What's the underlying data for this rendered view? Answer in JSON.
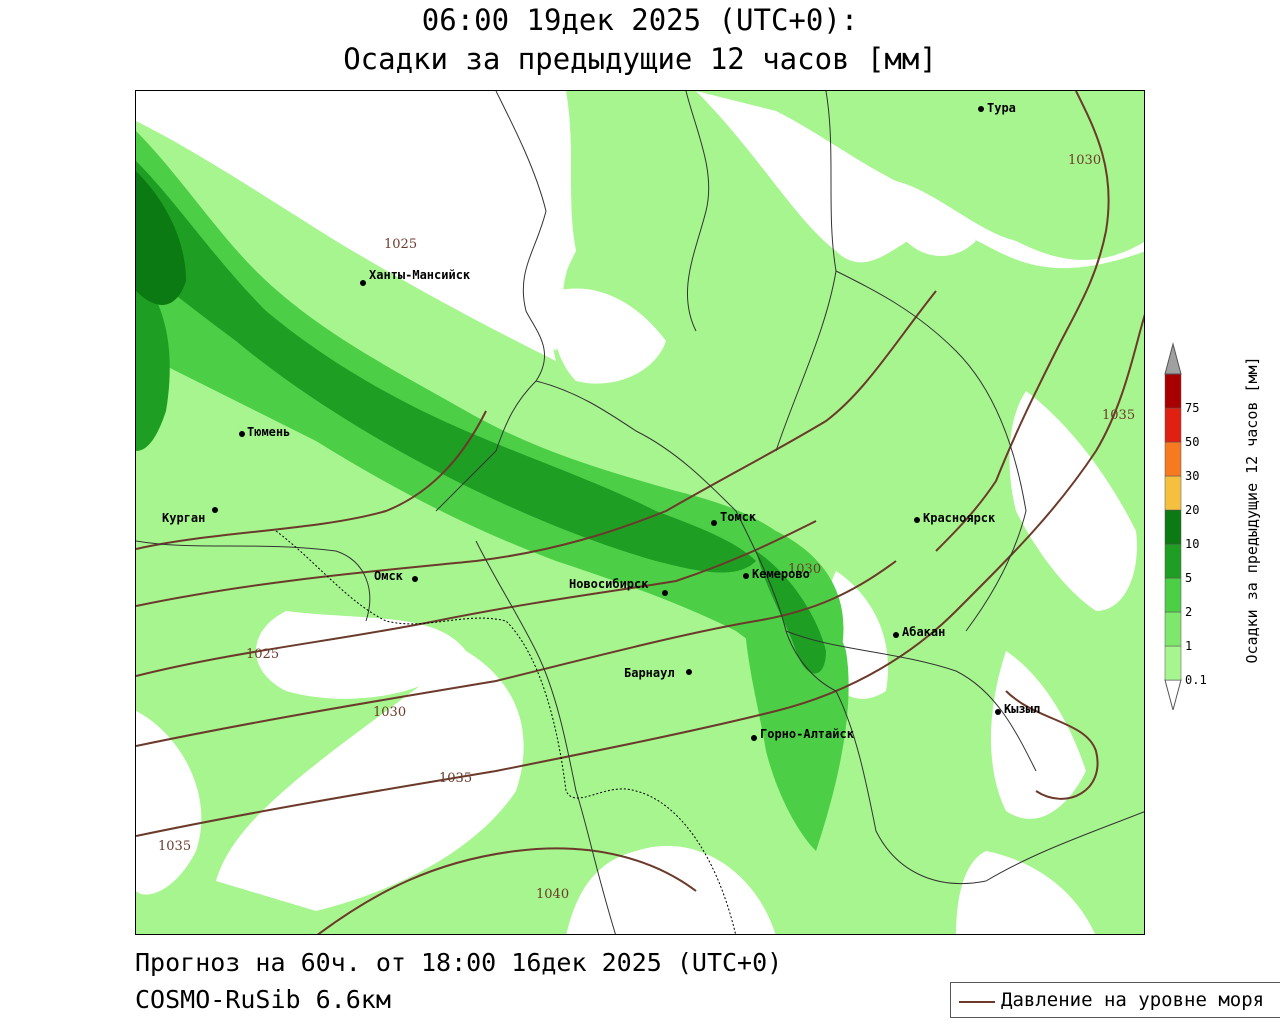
{
  "header": {
    "title_line1": "06:00 19дек 2025 (UTC+0):",
    "title_line2": "Осадки за предыдущие 12 часов [мм]"
  },
  "footer": {
    "forecast": "Прогноз на 60ч. от 18:00 16дек 2025 (UTC+0)",
    "model": "COSMO-RuSib 6.6км"
  },
  "legend": {
    "pressure_label": "Давление на уровне моря",
    "pressure_color": "#6b3a2a"
  },
  "colorbar": {
    "title": "Осадки за предыдущие 12 часов [мм]",
    "levels": [
      "0.1",
      "1",
      "2",
      "5",
      "10",
      "20",
      "30",
      "50",
      "75"
    ],
    "colors": [
      "#a6f58e",
      "#7ee86d",
      "#4ccf46",
      "#1e9e22",
      "#0b7a12",
      "#f5c040",
      "#f57a20",
      "#e02010",
      "#a80000",
      "#a0a0a0"
    ]
  },
  "cities": [
    {
      "name": "Тура"
    },
    {
      "name": "Ханты-Мансийск"
    },
    {
      "name": "Тюмень"
    },
    {
      "name": "Курган"
    },
    {
      "name": "Омск"
    },
    {
      "name": "Томск"
    },
    {
      "name": "Красноярск"
    },
    {
      "name": "Новосибирск"
    },
    {
      "name": "Кемерово"
    },
    {
      "name": "Абакан"
    },
    {
      "name": "Барнаул"
    },
    {
      "name": "Кызыл"
    },
    {
      "name": "Горно-Алтайск"
    }
  ],
  "isobars": [
    "1025",
    "1030",
    "1035",
    "1040"
  ]
}
